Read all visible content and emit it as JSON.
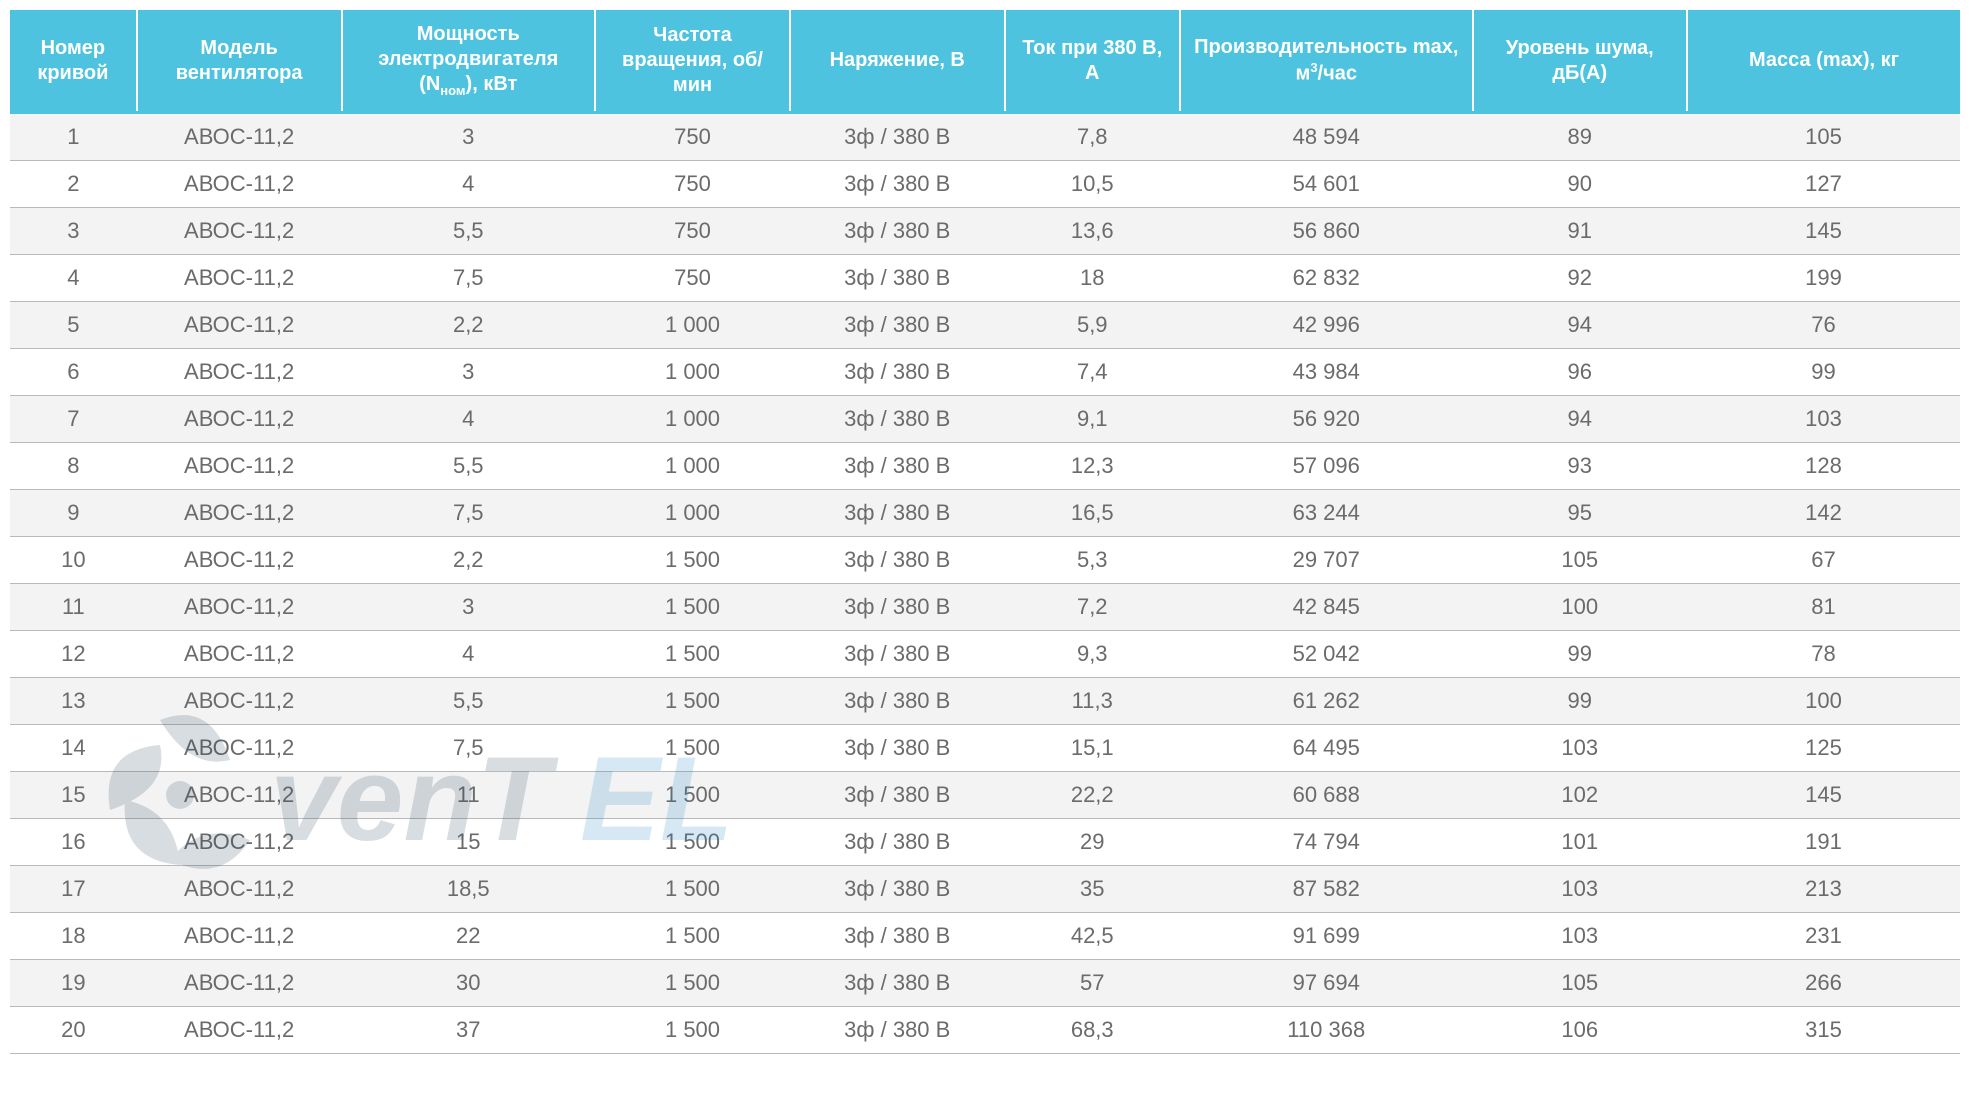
{
  "table": {
    "type": "table",
    "header_bg": "#4ec3e0",
    "header_text_color": "#ffffff",
    "header_border_color": "#ffffff",
    "header_accent_border": "#4ec3e0",
    "row_border_color": "#b9b9b9",
    "row_alt_bg": "#f3f3f3",
    "row_bg": "#ffffff",
    "body_text_color": "#6b6b6b",
    "header_fontsize": 20,
    "body_fontsize": 22,
    "columns": [
      {
        "key": "num",
        "label": "Номер кривой",
        "width": "6.5%"
      },
      {
        "key": "model",
        "label": "Модель вентилятора",
        "width": "10.5%"
      },
      {
        "key": "power",
        "label_html": "Мощность электродвигателя (N<sub>ном</sub>), кВт",
        "width": "13%"
      },
      {
        "key": "rpm",
        "label": "Частота вращения, об/мин",
        "width": "10%"
      },
      {
        "key": "voltage",
        "label": "Наряжение, В",
        "width": "11%"
      },
      {
        "key": "current",
        "label": "Ток при 380 В, А",
        "width": "9%"
      },
      {
        "key": "perf",
        "label_html": "Производительность max, м<sup>3</sup>/час",
        "width": "15%"
      },
      {
        "key": "noise",
        "label": "Уровень шума, дБ(А)",
        "width": "11%"
      },
      {
        "key": "mass",
        "label": "Масса (max), кг",
        "width": "14%"
      }
    ],
    "rows": [
      {
        "num": "1",
        "model": "АВОС-11,2",
        "power": "3",
        "rpm": "750",
        "voltage": "3ф / 380 В",
        "current": "7,8",
        "perf": "48 594",
        "noise": "89",
        "mass": "105",
        "alt": true
      },
      {
        "num": "2",
        "model": "АВОС-11,2",
        "power": "4",
        "rpm": "750",
        "voltage": "3ф / 380 В",
        "current": "10,5",
        "perf": "54 601",
        "noise": "90",
        "mass": "127",
        "alt": false
      },
      {
        "num": "3",
        "model": "АВОС-11,2",
        "power": "5,5",
        "rpm": "750",
        "voltage": "3ф / 380 В",
        "current": "13,6",
        "perf": "56 860",
        "noise": "91",
        "mass": "145",
        "alt": true
      },
      {
        "num": "4",
        "model": "АВОС-11,2",
        "power": "7,5",
        "rpm": "750",
        "voltage": "3ф / 380 В",
        "current": "18",
        "perf": "62 832",
        "noise": "92",
        "mass": "199",
        "alt": false
      },
      {
        "num": "5",
        "model": "АВОС-11,2",
        "power": "2,2",
        "rpm": "1 000",
        "voltage": "3ф / 380 В",
        "current": "5,9",
        "perf": "42 996",
        "noise": "94",
        "mass": "76",
        "alt": true
      },
      {
        "num": "6",
        "model": "АВОС-11,2",
        "power": "3",
        "rpm": "1 000",
        "voltage": "3ф / 380 В",
        "current": "7,4",
        "perf": "43 984",
        "noise": "96",
        "mass": "99",
        "alt": false
      },
      {
        "num": "7",
        "model": "АВОС-11,2",
        "power": "4",
        "rpm": "1 000",
        "voltage": "3ф / 380 В",
        "current": "9,1",
        "perf": "56 920",
        "noise": "94",
        "mass": "103",
        "alt": true
      },
      {
        "num": "8",
        "model": "АВОС-11,2",
        "power": "5,5",
        "rpm": "1 000",
        "voltage": "3ф / 380 В",
        "current": "12,3",
        "perf": "57 096",
        "noise": "93",
        "mass": "128",
        "alt": false
      },
      {
        "num": "9",
        "model": "АВОС-11,2",
        "power": "7,5",
        "rpm": "1 000",
        "voltage": "3ф / 380 В",
        "current": "16,5",
        "perf": "63 244",
        "noise": "95",
        "mass": "142",
        "alt": true
      },
      {
        "num": "10",
        "model": "АВОС-11,2",
        "power": "2,2",
        "rpm": "1 500",
        "voltage": "3ф / 380 В",
        "current": "5,3",
        "perf": "29 707",
        "noise": "105",
        "mass": "67",
        "alt": false
      },
      {
        "num": "11",
        "model": "АВОС-11,2",
        "power": "3",
        "rpm": "1 500",
        "voltage": "3ф / 380 В",
        "current": "7,2",
        "perf": "42 845",
        "noise": "100",
        "mass": "81",
        "alt": true
      },
      {
        "num": "12",
        "model": "АВОС-11,2",
        "power": "4",
        "rpm": "1 500",
        "voltage": "3ф / 380 В",
        "current": "9,3",
        "perf": "52 042",
        "noise": "99",
        "mass": "78",
        "alt": false
      },
      {
        "num": "13",
        "model": "АВОС-11,2",
        "power": "5,5",
        "rpm": "1 500",
        "voltage": "3ф / 380 В",
        "current": "11,3",
        "perf": "61 262",
        "noise": "99",
        "mass": "100",
        "alt": true
      },
      {
        "num": "14",
        "model": "АВОС-11,2",
        "power": "7,5",
        "rpm": "1 500",
        "voltage": "3ф / 380 В",
        "current": "15,1",
        "perf": "64 495",
        "noise": "103",
        "mass": "125",
        "alt": false
      },
      {
        "num": "15",
        "model": "АВОС-11,2",
        "power": "11",
        "rpm": "1 500",
        "voltage": "3ф / 380 В",
        "current": "22,2",
        "perf": "60 688",
        "noise": "102",
        "mass": "145",
        "alt": true
      },
      {
        "num": "16",
        "model": "АВОС-11,2",
        "power": "15",
        "rpm": "1 500",
        "voltage": "3ф / 380 В",
        "current": "29",
        "perf": "74 794",
        "noise": "101",
        "mass": "191",
        "alt": false
      },
      {
        "num": "17",
        "model": "АВОС-11,2",
        "power": "18,5",
        "rpm": "1 500",
        "voltage": "3ф / 380 В",
        "current": "35",
        "perf": "87 582",
        "noise": "103",
        "mass": "213",
        "alt": true
      },
      {
        "num": "18",
        "model": "АВОС-11,2",
        "power": "22",
        "rpm": "1 500",
        "voltage": "3ф / 380 В",
        "current": "42,5",
        "perf": "91 699",
        "noise": "103",
        "mass": "231",
        "alt": false
      },
      {
        "num": "19",
        "model": "АВОС-11,2",
        "power": "30",
        "rpm": "1 500",
        "voltage": "3ф / 380 В",
        "current": "57",
        "perf": "97 694",
        "noise": "105",
        "mass": "266",
        "alt": true
      },
      {
        "num": "20",
        "model": "АВОС-11,2",
        "power": "37",
        "rpm": "1 500",
        "voltage": "3ф / 380 В",
        "current": "68,3",
        "perf": "110 368",
        "noise": "106",
        "mass": "315",
        "alt": false
      }
    ]
  },
  "watermark": {
    "text_dark": "venT",
    "text_accent": "EL",
    "fan_color": "#2b4a5e",
    "text_color": "#2b4a5e",
    "accent_color": "#1d86c7",
    "opacity": 0.18
  }
}
